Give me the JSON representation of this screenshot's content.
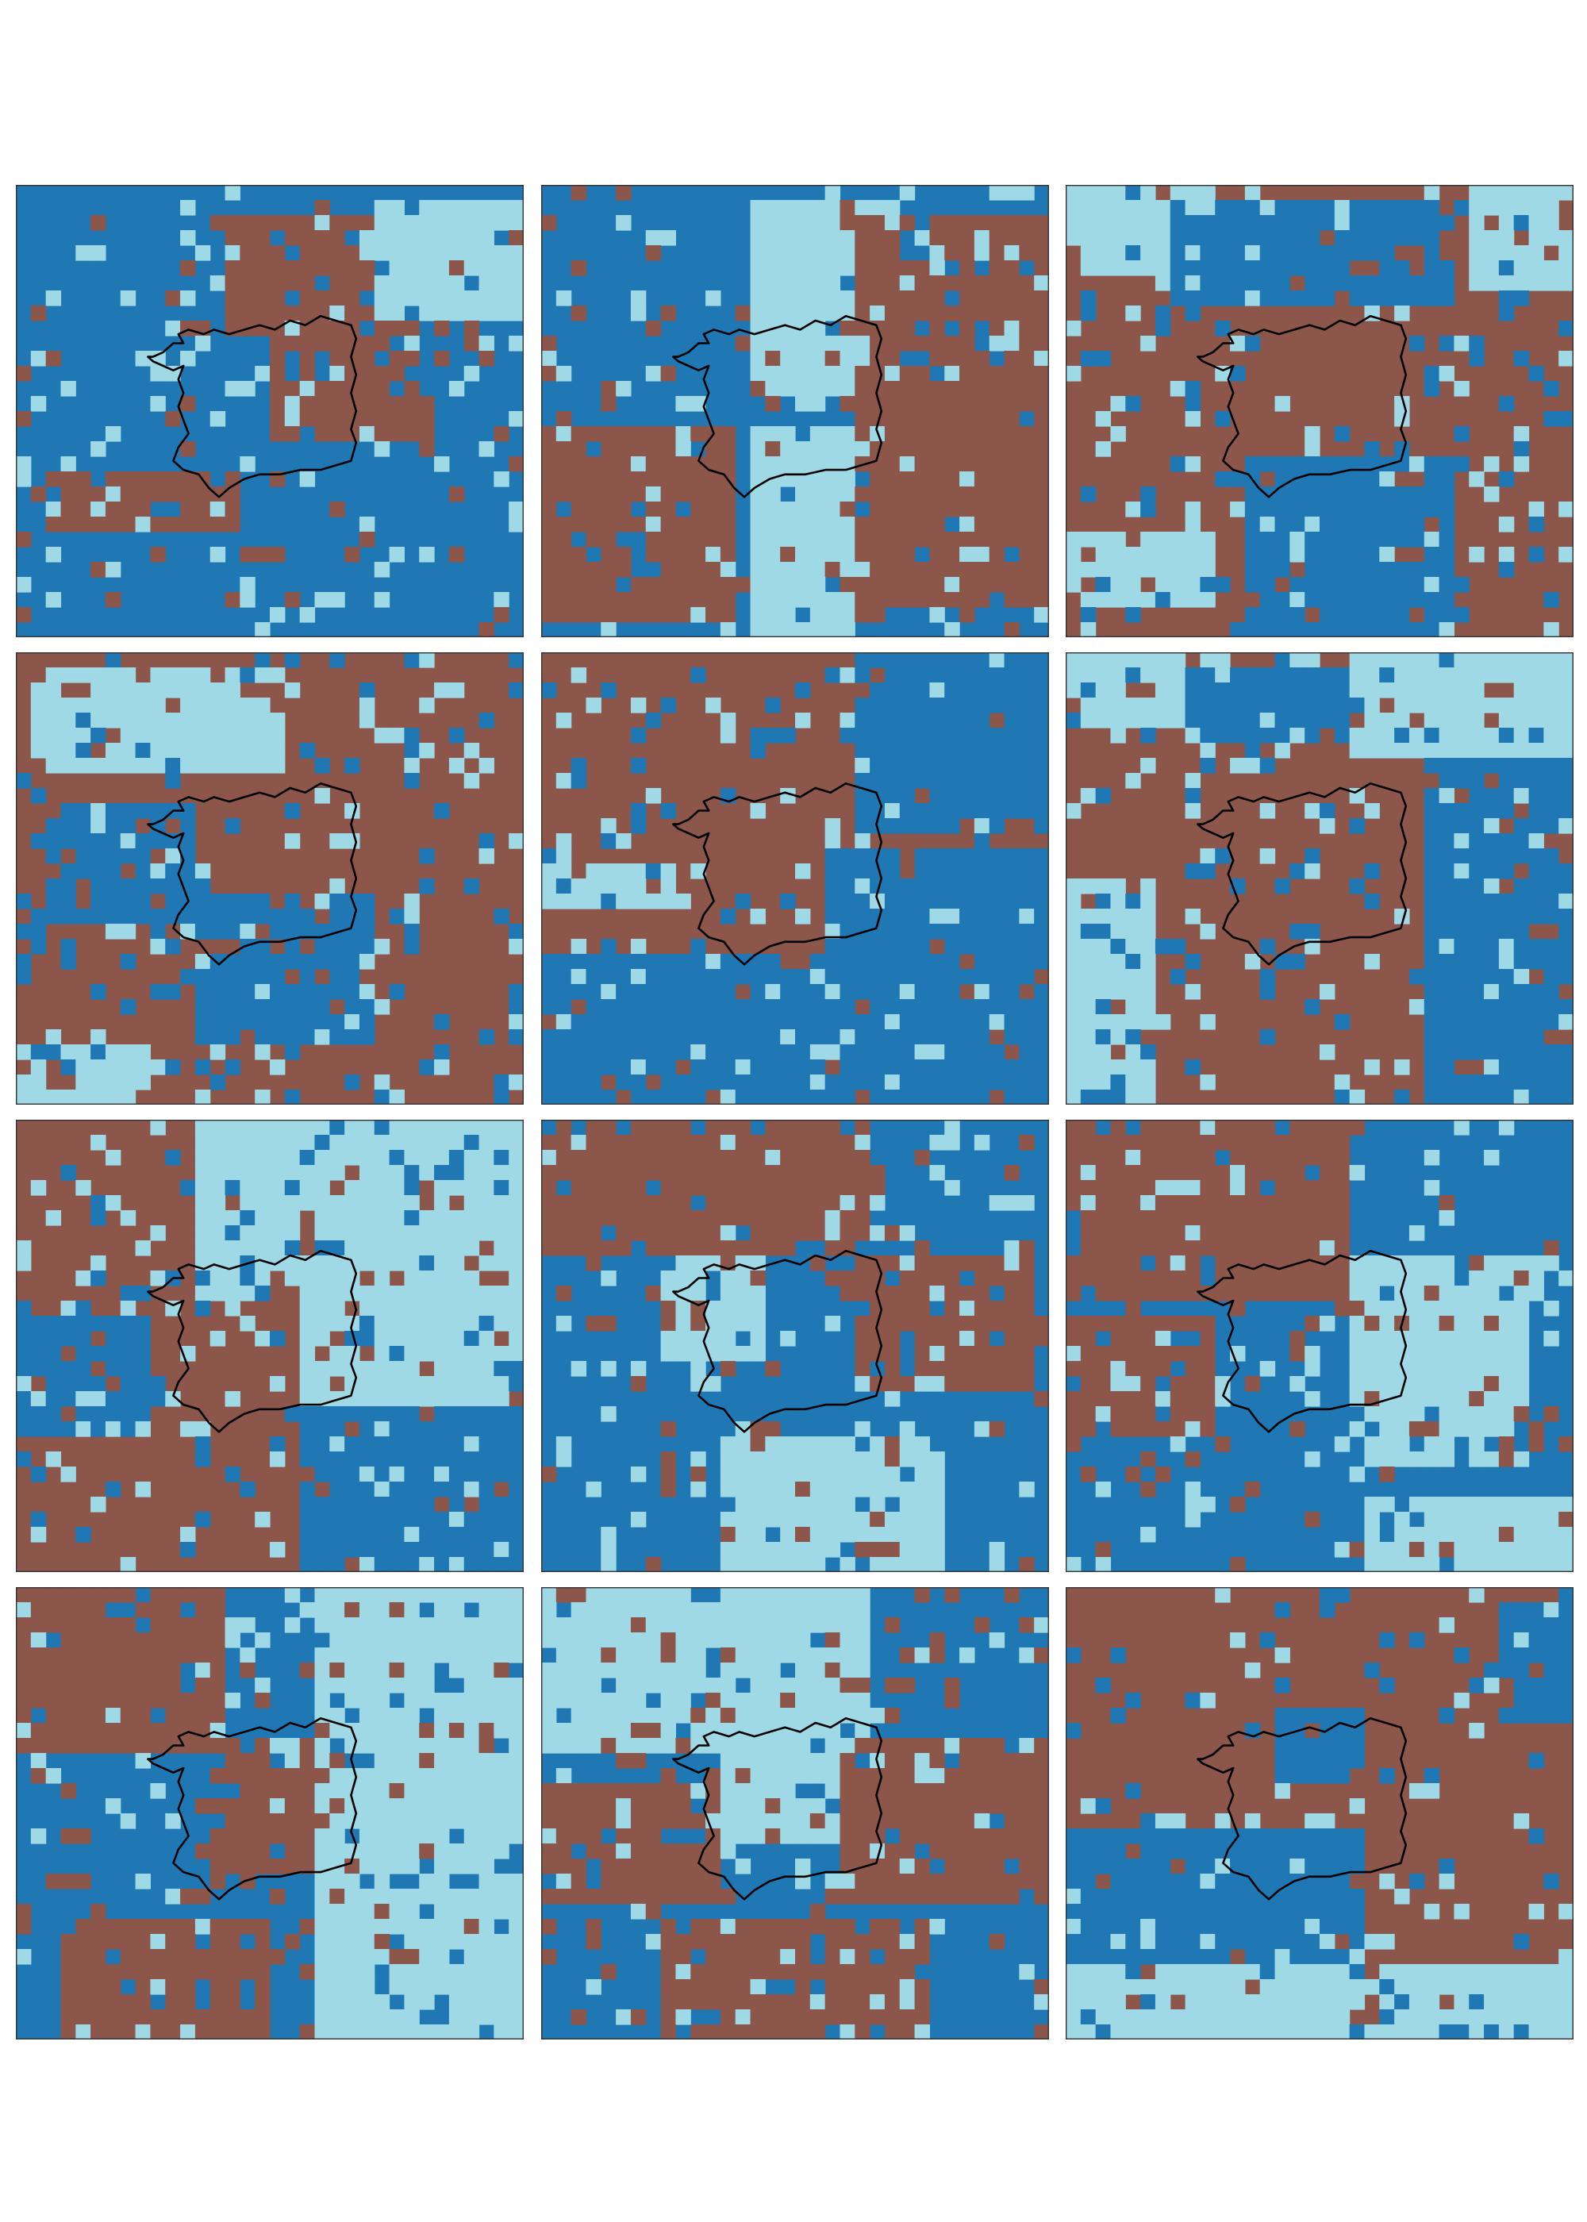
{
  "figure": {
    "grid": {
      "rows": 4,
      "cols": 3
    },
    "background": "#ffffff"
  },
  "palette": {
    "light_blue": "#9ed9e5",
    "blue": "#1f77b4",
    "brown": "#8c564b"
  },
  "map_grid": {
    "cols": 34,
    "rows": 30
  },
  "boundary_color": "#000000",
  "panels": [
    {
      "id": "r1c1",
      "base": "blue",
      "zones": [
        [
          "brown",
          0.42,
          0.08,
          0.38,
          0.25
        ],
        [
          "light_blue",
          0.72,
          0.02,
          0.3,
          0.28
        ],
        [
          "brown",
          0.5,
          0.32,
          0.28,
          0.26
        ],
        [
          "brown",
          0.05,
          0.62,
          0.4,
          0.15
        ]
      ],
      "noise": 0.22
    },
    {
      "id": "r1c2",
      "base": "blue",
      "zones": [
        [
          "light_blue",
          0.4,
          0.05,
          0.3,
          0.4
        ],
        [
          "brown",
          0.62,
          0.08,
          0.5,
          0.85
        ],
        [
          "brown",
          0.0,
          0.55,
          0.38,
          0.4
        ],
        [
          "light_blue",
          0.4,
          0.55,
          0.22,
          0.45
        ]
      ],
      "noise": 0.22
    },
    {
      "id": "r1c3",
      "base": "brown",
      "zones": [
        [
          "light_blue",
          0.0,
          0.0,
          0.25,
          0.2
        ],
        [
          "blue",
          0.2,
          0.02,
          0.55,
          0.25
        ],
        [
          "light_blue",
          0.8,
          0.0,
          0.25,
          0.22
        ],
        [
          "blue",
          0.35,
          0.6,
          0.4,
          0.4
        ],
        [
          "light_blue",
          0.0,
          0.78,
          0.28,
          0.15
        ]
      ],
      "noise": 0.22
    },
    {
      "id": "r2c1",
      "base": "brown",
      "zones": [
        [
          "light_blue",
          0.02,
          0.02,
          0.5,
          0.25
        ],
        [
          "blue",
          0.05,
          0.35,
          0.3,
          0.25
        ],
        [
          "blue",
          0.35,
          0.55,
          0.35,
          0.3
        ],
        [
          "light_blue",
          0.0,
          0.88,
          0.25,
          0.12
        ]
      ],
      "noise": 0.25
    },
    {
      "id": "r2c2",
      "base": "brown",
      "zones": [
        [
          "blue",
          0.62,
          0.0,
          0.4,
          0.4
        ],
        [
          "blue",
          0.0,
          0.68,
          1.0,
          0.32
        ],
        [
          "light_blue",
          0.0,
          0.48,
          0.3,
          0.1
        ],
        [
          "blue",
          0.55,
          0.45,
          0.45,
          0.3
        ]
      ],
      "noise": 0.18
    },
    {
      "id": "r2c3",
      "base": "brown",
      "zones": [
        [
          "light_blue",
          0.0,
          0.0,
          0.28,
          0.15
        ],
        [
          "light_blue",
          0.55,
          0.0,
          0.45,
          0.22
        ],
        [
          "blue",
          0.25,
          0.05,
          0.3,
          0.15
        ],
        [
          "blue",
          0.7,
          0.25,
          0.3,
          0.75
        ],
        [
          "light_blue",
          0.0,
          0.5,
          0.18,
          0.5
        ]
      ],
      "noise": 0.22
    },
    {
      "id": "r3c1",
      "base": "brown",
      "zones": [
        [
          "light_blue",
          0.36,
          0.0,
          0.64,
          0.4
        ],
        [
          "light_blue",
          0.55,
          0.35,
          0.45,
          0.3
        ],
        [
          "blue",
          0.55,
          0.65,
          0.45,
          0.35
        ],
        [
          "blue",
          0.0,
          0.45,
          0.25,
          0.25
        ]
      ],
      "noise": 0.24
    },
    {
      "id": "r3c2",
      "base": "blue",
      "zones": [
        [
          "brown",
          0.0,
          0.0,
          0.65,
          0.3
        ],
        [
          "light_blue",
          0.35,
          0.7,
          0.45,
          0.3
        ],
        [
          "light_blue",
          0.25,
          0.3,
          0.2,
          0.22
        ],
        [
          "brown",
          0.62,
          0.3,
          0.35,
          0.3
        ]
      ],
      "noise": 0.22
    },
    {
      "id": "r3c3",
      "base": "blue",
      "zones": [
        [
          "brown",
          0.0,
          0.0,
          0.55,
          0.4
        ],
        [
          "brown",
          0.0,
          0.45,
          0.3,
          0.25
        ],
        [
          "light_blue",
          0.55,
          0.3,
          0.35,
          0.45
        ],
        [
          "light_blue",
          0.6,
          0.85,
          0.4,
          0.15
        ]
      ],
      "noise": 0.22
    },
    {
      "id": "r4c1",
      "base": "blue",
      "zones": [
        [
          "brown",
          0.0,
          0.0,
          0.4,
          0.35
        ],
        [
          "light_blue",
          0.58,
          0.0,
          0.42,
          1.0
        ],
        [
          "brown",
          0.38,
          0.35,
          0.22,
          0.28
        ],
        [
          "brown",
          0.1,
          0.75,
          0.4,
          0.25
        ]
      ],
      "noise": 0.22
    },
    {
      "id": "r4c2",
      "base": "blue",
      "zones": [
        [
          "light_blue",
          0.0,
          0.0,
          0.65,
          0.35
        ],
        [
          "brown",
          0.0,
          0.45,
          0.35,
          0.25
        ],
        [
          "brown",
          0.6,
          0.35,
          0.4,
          0.35
        ],
        [
          "brown",
          0.25,
          0.75,
          0.5,
          0.25
        ],
        [
          "light_blue",
          0.35,
          0.3,
          0.25,
          0.28
        ]
      ],
      "noise": 0.22
    },
    {
      "id": "r4c3",
      "base": "brown",
      "zones": [
        [
          "blue",
          0.0,
          0.52,
          0.6,
          0.35
        ],
        [
          "light_blue",
          0.0,
          0.85,
          1.0,
          0.15
        ],
        [
          "blue",
          0.85,
          0.05,
          0.15,
          0.25
        ],
        [
          "blue",
          0.4,
          0.28,
          0.2,
          0.15
        ]
      ],
      "noise": 0.2
    }
  ]
}
